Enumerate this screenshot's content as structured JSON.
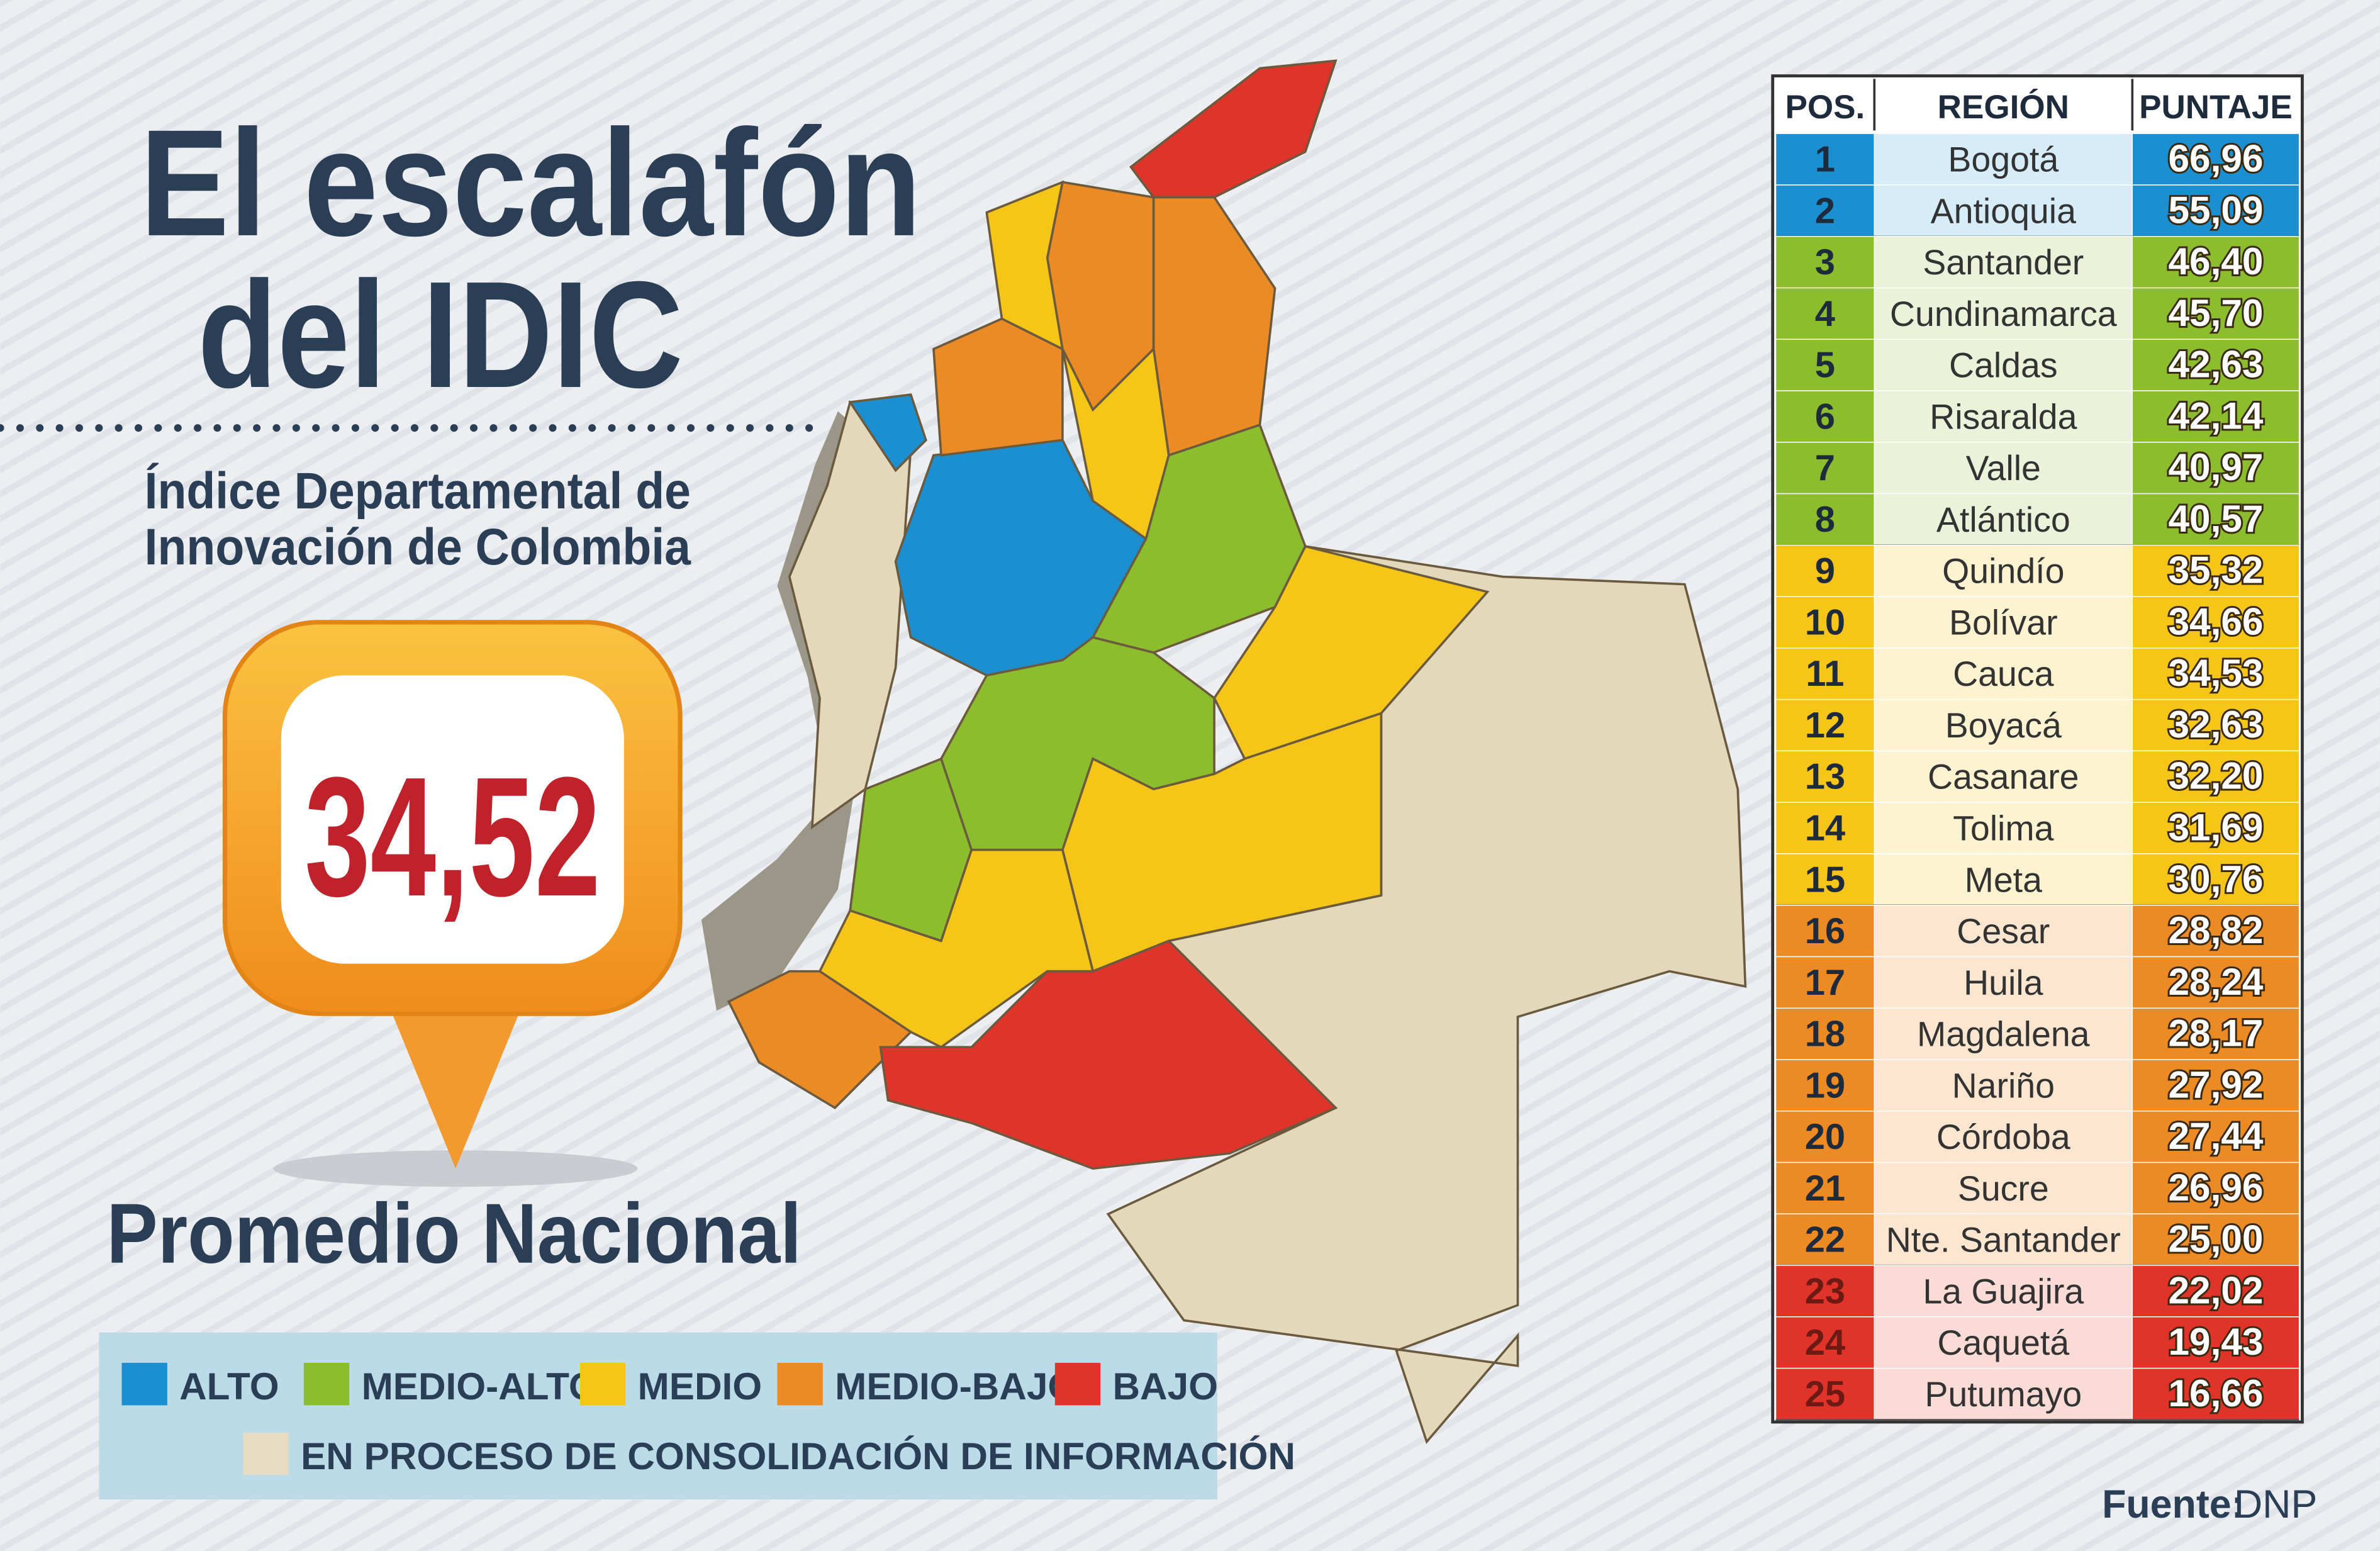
{
  "header": {
    "title_lines": [
      "El escalafón",
      "del IDIC"
    ],
    "subtitle_lines": [
      "Índice Departamental de",
      "Innovación de Colombia"
    ]
  },
  "average": {
    "value": "34,52",
    "label": "Promedio Nacional"
  },
  "legend": [
    {
      "label": "ALTO",
      "color": "#1b8fd0"
    },
    {
      "label": "MEDIO-ALTO",
      "color": "#8cbd2d"
    },
    {
      "label": "MEDIO",
      "color": "#f5c518"
    },
    {
      "label": "MEDIO-BAJO",
      "color": "#ec8a24"
    },
    {
      "label": "BAJO",
      "color": "#e0342a"
    },
    {
      "label": "EN PROCESO DE CONSOLIDACIÓN DE INFORMACIÓN",
      "color": "#e6dcc2"
    }
  ],
  "table": {
    "columns": [
      "POS.",
      "REGIÓN",
      "PUNTAJE"
    ],
    "groups": [
      {
        "color": "#1b8fd0",
        "light": "#d6ecf8",
        "rows": [
          [
            1,
            "Bogotá",
            "66,96"
          ],
          [
            2,
            "Antioquia",
            "55,09"
          ]
        ]
      },
      {
        "color": "#8cbd2d",
        "light": "#eaf3d9",
        "rows": [
          [
            3,
            "Santander",
            "46,40"
          ],
          [
            4,
            "Cundinamarca",
            "45,70"
          ],
          [
            5,
            "Caldas",
            "42,63"
          ],
          [
            6,
            "Risaralda",
            "42,14"
          ],
          [
            7,
            "Valle",
            "40,97"
          ],
          [
            8,
            "Atlántico",
            "40,57"
          ]
        ]
      },
      {
        "color": "#f5c518",
        "light": "#fdf3d0",
        "rows": [
          [
            9,
            "Quindío",
            "35,32"
          ],
          [
            10,
            "Bolívar",
            "34,66"
          ],
          [
            11,
            "Cauca",
            "34,53"
          ],
          [
            12,
            "Boyacá",
            "32,63"
          ],
          [
            13,
            "Casanare",
            "32,20"
          ],
          [
            14,
            "Tolima",
            "31,69"
          ],
          [
            15,
            "Meta",
            "30,76"
          ]
        ]
      },
      {
        "color": "#ec8a24",
        "light": "#fce6cf",
        "rows": [
          [
            16,
            "Cesar",
            "28,82"
          ],
          [
            17,
            "Huila",
            "28,24"
          ],
          [
            18,
            "Magdalena",
            "28,17"
          ],
          [
            19,
            "Nariño",
            "27,92"
          ],
          [
            20,
            "Córdoba",
            "27,44"
          ],
          [
            21,
            "Sucre",
            "26,96"
          ],
          [
            22,
            "Nte. Santander",
            "25,00"
          ]
        ]
      },
      {
        "color": "#e0342a",
        "light": "#fadbd6",
        "rows": [
          [
            23,
            "La Guajira",
            "22,02"
          ],
          [
            24,
            "Caquetá",
            "19,43"
          ],
          [
            25,
            "Putumayo",
            "16,66"
          ]
        ]
      }
    ]
  },
  "source": {
    "label": "Fuente:",
    "value": "DNP"
  }
}
